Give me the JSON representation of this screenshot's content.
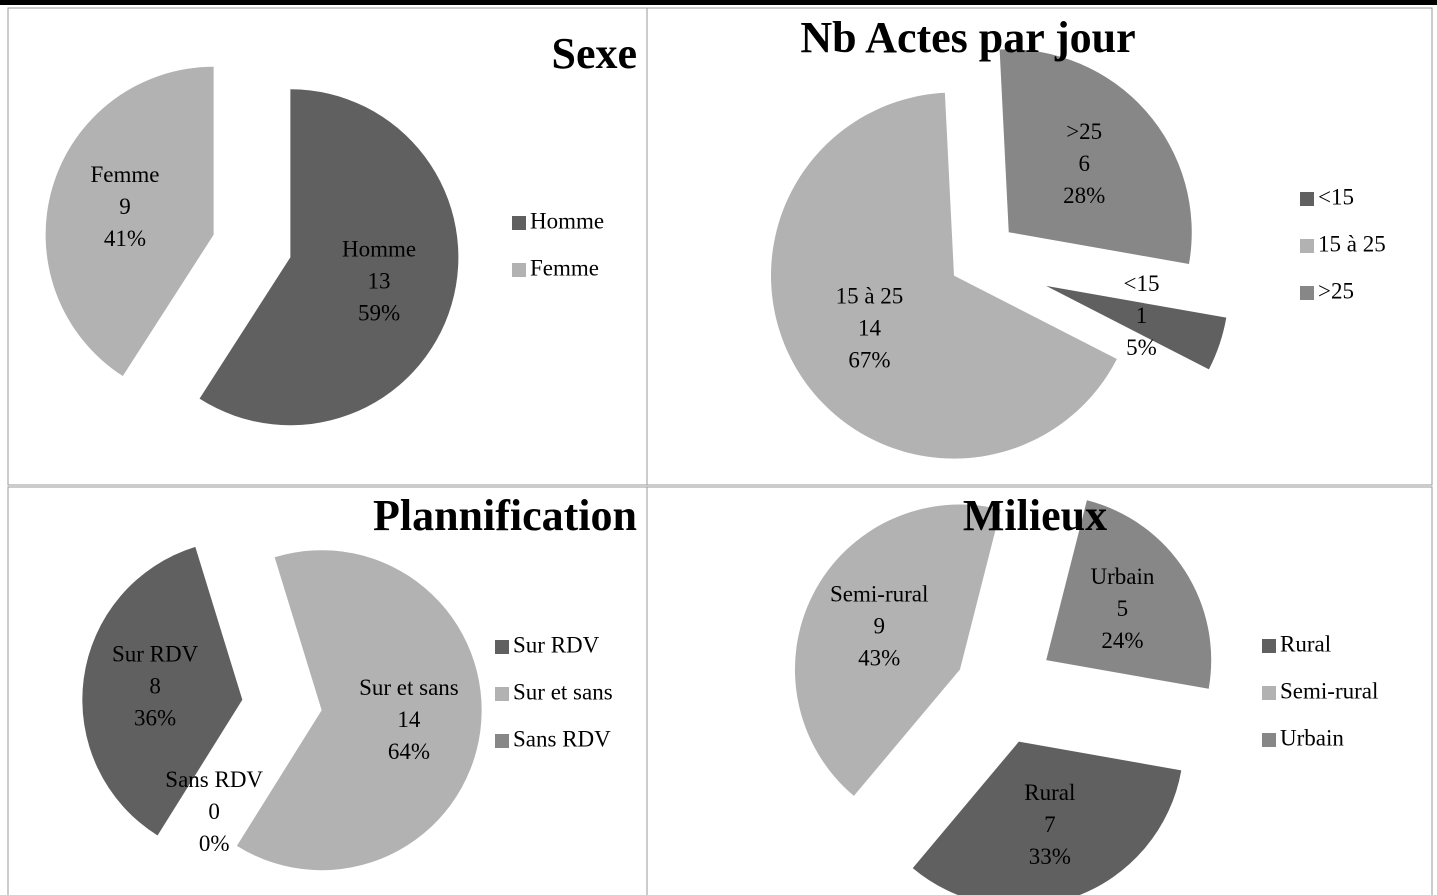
{
  "chart_data": [
    {
      "type": "pie",
      "title": "Sexe",
      "categories": [
        "Homme",
        "Femme"
      ],
      "values": [
        13,
        9
      ],
      "percents": [
        59,
        41
      ],
      "percent_labels": [
        "59%",
        "41%"
      ],
      "colors": [
        "#606060",
        "#b2b2b2"
      ],
      "legend": "right"
    },
    {
      "type": "pie",
      "title": "Nb Actes par jour",
      "categories": [
        "<15",
        "15 à 25",
        ">25"
      ],
      "values": [
        1,
        14,
        6
      ],
      "percents": [
        5,
        67,
        28
      ],
      "percent_labels": [
        "5%",
        "67%",
        "28%"
      ],
      "colors": [
        "#606060",
        "#b2b2b2",
        "#878787"
      ],
      "legend": "right"
    },
    {
      "type": "pie",
      "title": "Plannification",
      "categories": [
        "Sur RDV",
        "Sur et sans",
        "Sans RDV"
      ],
      "values": [
        8,
        14,
        0
      ],
      "percents": [
        36,
        64,
        0
      ],
      "percent_labels": [
        "36%",
        "64%",
        "0%"
      ],
      "colors": [
        "#606060",
        "#b2b2b2",
        "#878787"
      ],
      "legend": "right"
    },
    {
      "type": "pie",
      "title": "Milieux",
      "categories": [
        "Rural",
        "Semi-rural",
        "Urbain"
      ],
      "values": [
        7,
        9,
        5
      ],
      "percents": [
        33,
        43,
        24
      ],
      "percent_labels": [
        "33%",
        "43%",
        "24%"
      ],
      "colors": [
        "#606060",
        "#b2b2b2",
        "#878787"
      ],
      "legend": "right"
    }
  ]
}
